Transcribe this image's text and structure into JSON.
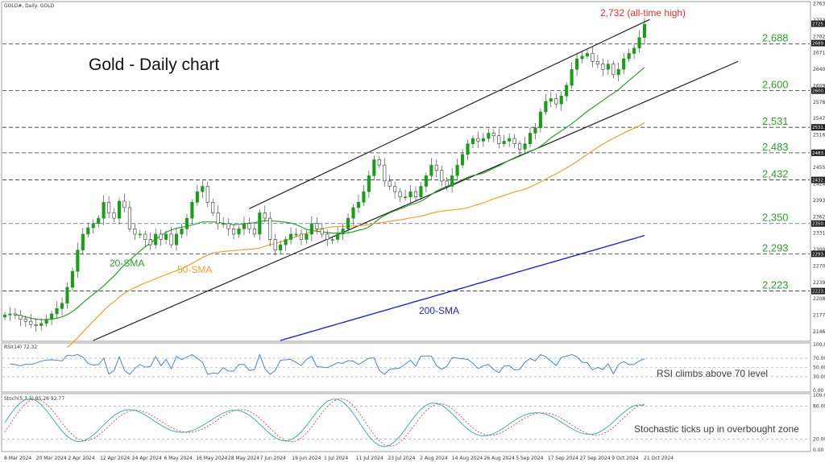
{
  "header": {
    "symbol": "GOLD#, Daily: GOLD"
  },
  "main": {
    "title": "Gold - Daily chart",
    "ath_note": "2,732 (all-time high)",
    "sma20_label": "20-SMA",
    "sma50_label": "50-SMA",
    "sma200_label": "200-SMA"
  },
  "levels": [
    {
      "value": 2688,
      "label": "2,688"
    },
    {
      "value": 2600,
      "label": "2,600"
    },
    {
      "value": 2531,
      "label": "2,531"
    },
    {
      "value": 2483,
      "label": "2,483"
    },
    {
      "value": 2432,
      "label": "2,432"
    },
    {
      "value": 2350,
      "label": "2,350"
    },
    {
      "value": 2293,
      "label": "2,293"
    },
    {
      "value": 2223,
      "label": "2,223"
    }
  ],
  "axis_ticks": [
    "2763.70",
    "2733.05",
    "2702.00",
    "2671.15",
    "2640.30",
    "2609.45",
    "2578.60",
    "2547.75",
    "2516.90",
    "2486.05",
    "2455.20",
    "2424.35",
    "2393.50",
    "2362.65",
    "2331.80",
    "2300.95",
    "2270.10",
    "2239.25",
    "2208.40",
    "2177.55",
    "2146.70"
  ],
  "axis_tags": [
    {
      "value": 2725.92,
      "label": "2725.92"
    },
    {
      "value": 2689.45,
      "label": "2689.45"
    },
    {
      "value": 2600.0,
      "label": "2600.00"
    },
    {
      "value": 2531.0,
      "label": "2531.00"
    },
    {
      "value": 2483.0,
      "label": "2483.00"
    },
    {
      "value": 2432.0,
      "label": "2432.00"
    },
    {
      "value": 2350.0,
      "label": "2350.00"
    },
    {
      "value": 2293.0,
      "label": "2293.00"
    },
    {
      "value": 2223.0,
      "label": "2223.00"
    }
  ],
  "rsi": {
    "header": "RSI(14) 72.32",
    "ticks": [
      "100.00",
      "70.00",
      "50.00",
      "30.00",
      "0.00"
    ],
    "note": "RSI climbs above 70 level"
  },
  "stoch": {
    "header": "Stoch(5,3,3) 95.26 92.77",
    "ticks": [
      "100.00",
      "80.00",
      "20.00",
      "0.00"
    ],
    "note": "Stochastic ticks up in overbought zone"
  },
  "x_labels": [
    "8 Mar 2024",
    "20 Mar 2024",
    "2 Apr 2024",
    "12 Apr 2024",
    "24 Apr 2024",
    "6 May 2024",
    "16 May 2024",
    "28 May 2024",
    "7 Jun 2024",
    "19 Jun 2024",
    "1 Jul 2024",
    "11 Jul 2024",
    "23 Jul 2024",
    "2 Aug 2024",
    "14 Aug 2024",
    "26 Aug 2024",
    "5 Sep 2024",
    "17 Sep 2024",
    "27 Sep 2024",
    "9 Oct 2024",
    "21 Oct 2024"
  ],
  "chart_data": {
    "type": "candlestick",
    "instrument": "GOLD#",
    "timeframe": "Daily",
    "y_range": [
      2130,
      2766
    ],
    "x_range": [
      "8 Mar 2024",
      "21 Oct 2024"
    ],
    "closes_approx": [
      2178,
      2180,
      2178,
      2170,
      2166,
      2160,
      2158,
      2162,
      2170,
      2180,
      2190,
      2200,
      2230,
      2260,
      2300,
      2330,
      2342,
      2350,
      2360,
      2390,
      2370,
      2360,
      2392,
      2380,
      2340,
      2330,
      2330,
      2320,
      2310,
      2330,
      2320,
      2330,
      2310,
      2330,
      2340,
      2360,
      2390,
      2410,
      2420,
      2390,
      2370,
      2350,
      2350,
      2340,
      2330,
      2340,
      2350,
      2340,
      2330,
      2370,
      2360,
      2320,
      2300,
      2310,
      2320,
      2330,
      2330,
      2320,
      2330,
      2350,
      2340,
      2330,
      2320,
      2320,
      2330,
      2340,
      2360,
      2380,
      2390,
      2410,
      2440,
      2470,
      2460,
      2430,
      2420,
      2410,
      2400,
      2400,
      2410,
      2400,
      2420,
      2440,
      2460,
      2450,
      2430,
      2420,
      2440,
      2460,
      2480,
      2500,
      2510,
      2505,
      2510,
      2520,
      2515,
      2500,
      2505,
      2510,
      2500,
      2490,
      2500,
      2520,
      2530,
      2560,
      2580,
      2585,
      2575,
      2590,
      2610,
      2640,
      2660,
      2665,
      2670,
      2655,
      2650,
      2640,
      2650,
      2630,
      2640,
      2660,
      2670,
      2680,
      2700,
      2725
    ],
    "series": [
      {
        "name": "20-SMA",
        "color": "#2e9e2e"
      },
      {
        "name": "50-SMA",
        "color": "#f0a030"
      },
      {
        "name": "200-SMA",
        "color": "#2525c8"
      }
    ],
    "horizontal_levels": [
      2688,
      2600,
      2531,
      2483,
      2432,
      2350,
      2293,
      2223
    ],
    "all_time_high": 2732,
    "rsi_last": 72.32,
    "stoch_last": [
      95.26,
      92.77
    ]
  }
}
